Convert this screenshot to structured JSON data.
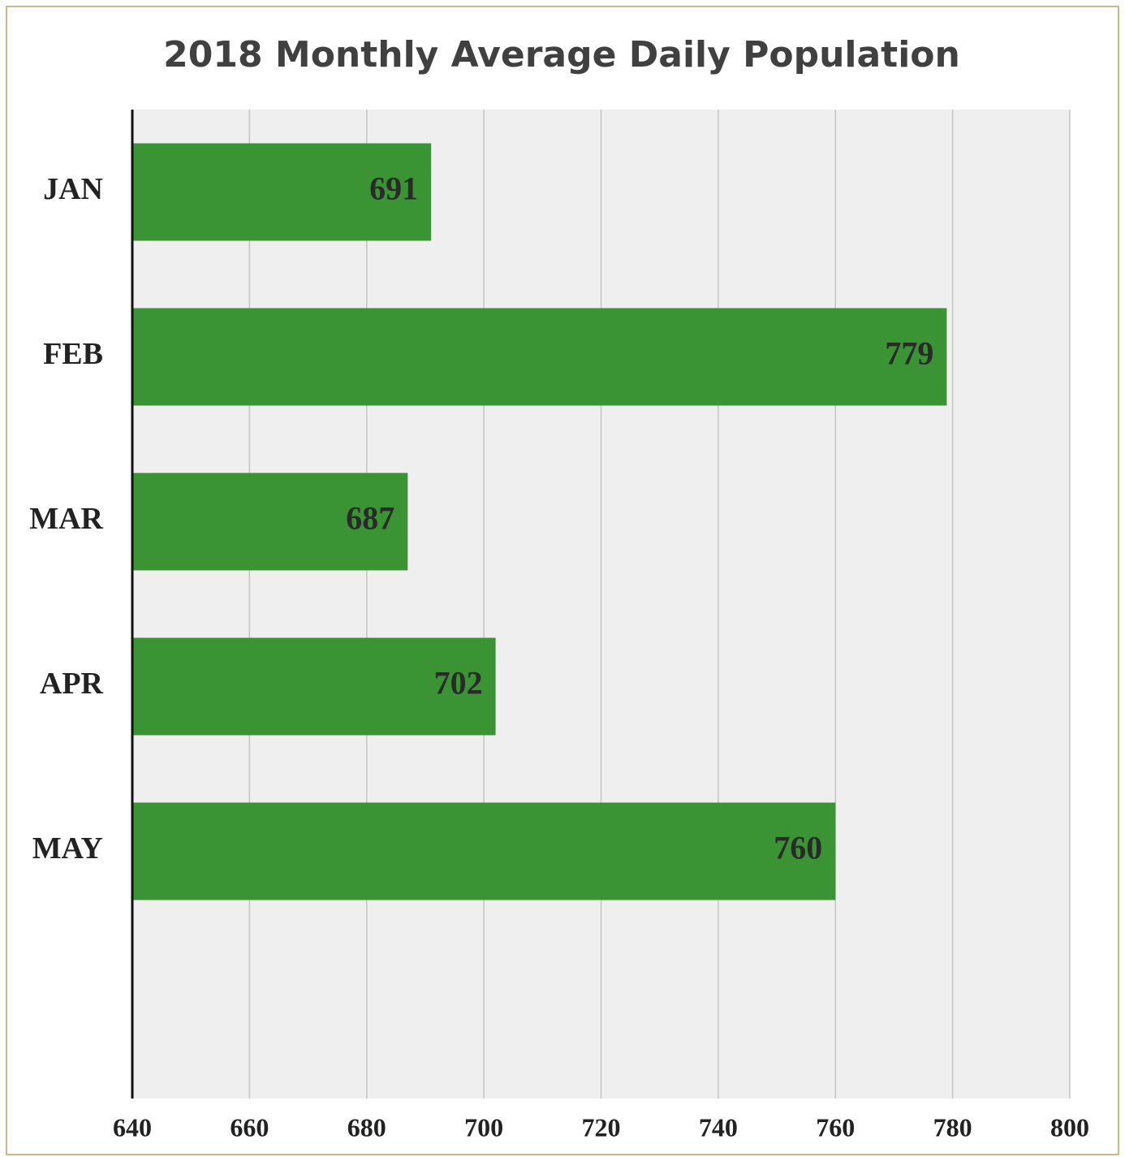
{
  "chart_data": {
    "type": "barh",
    "title": "2018 Monthly Average Daily Population",
    "categories": [
      "JAN",
      "FEB",
      "MAR",
      "APR",
      "MAY"
    ],
    "values": [
      691,
      779,
      687,
      702,
      760
    ],
    "color": "#3a9433",
    "xlim": [
      640,
      800
    ],
    "xticks": [
      640,
      660,
      680,
      700,
      720,
      740,
      760,
      780,
      800
    ],
    "grid": true
  }
}
